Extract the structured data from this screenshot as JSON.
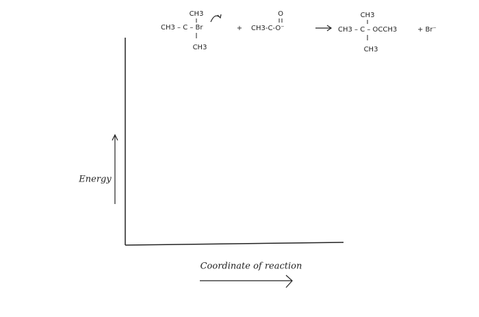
{
  "reaction": {
    "reactant_1": {
      "top": "CH3",
      "main": "CH3 – C – Br",
      "bottom": "CH3"
    },
    "plus_1": "+",
    "reactant_2": {
      "top": "O",
      "main": "CH3-C-O⁻"
    },
    "products": {
      "top": "CH3",
      "main": "CH3 – C – OCCH3",
      "bottom": "CH3"
    },
    "plus_2": "+ Br⁻"
  },
  "axes": {
    "y_label": "Energy",
    "x_label": "Coordinate of reaction"
  }
}
